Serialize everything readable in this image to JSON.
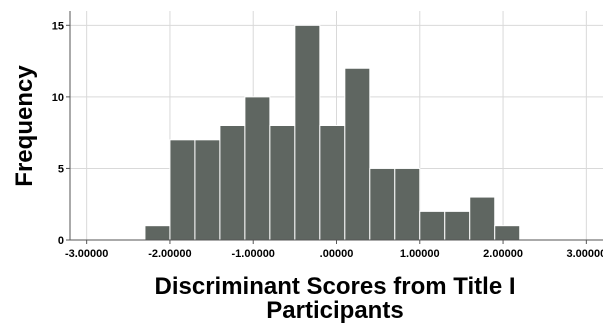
{
  "chart_data": {
    "type": "bar",
    "subtype": "histogram",
    "xlabel_lines": [
      "Discriminant Scores from Title I",
      "Participants"
    ],
    "ylabel": "Frequency",
    "bin_start": -2.3,
    "bin_width": 0.3,
    "values": [
      1,
      7,
      7,
      8,
      10,
      8,
      15,
      8,
      12,
      5,
      5,
      2,
      2,
      3,
      1
    ],
    "xlim": [
      -3.2,
      3.2
    ],
    "ylim": [
      0,
      16
    ],
    "x_ticks": [
      -3,
      -2,
      -1,
      0,
      1,
      2,
      3
    ],
    "x_tick_labels": [
      "-3.00000",
      "-2.00000",
      "-1.00000",
      ".00000",
      "1.00000",
      "2.00000",
      "3.00000"
    ],
    "y_ticks": [
      0,
      5,
      10,
      15
    ],
    "y_tick_labels": [
      "0",
      "5",
      "10",
      "15"
    ],
    "grid": true,
    "bar_color": "#5f6661",
    "grid_color": "#d9d9d9"
  }
}
